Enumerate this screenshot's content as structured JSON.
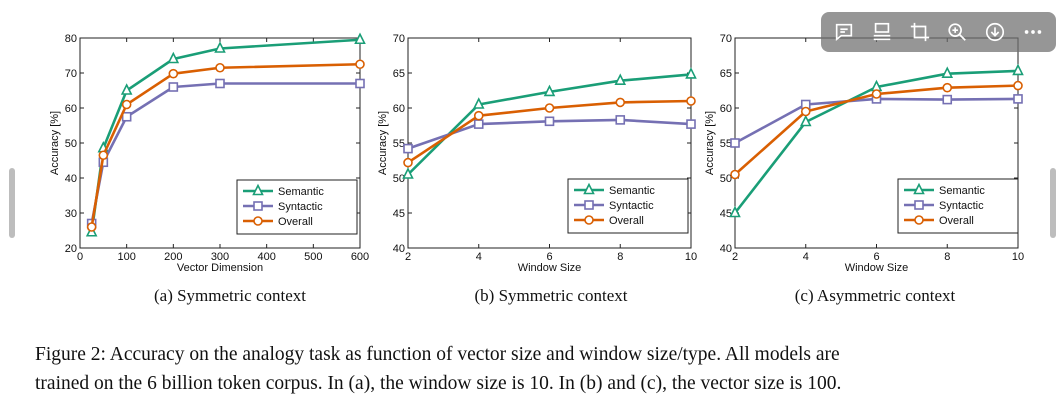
{
  "chart_data": [
    {
      "type": "line",
      "xlabel": "Vector Dimension",
      "ylabel": "Accuracy [%]",
      "xlim": [
        0,
        600
      ],
      "ylim": [
        20,
        80
      ],
      "xticks": [
        0,
        100,
        200,
        300,
        400,
        500,
        600
      ],
      "yticks": [
        20,
        30,
        40,
        50,
        60,
        70,
        80
      ],
      "legend_position": "lower-right",
      "series": [
        {
          "name": "Semantic",
          "color": "#1a9e77",
          "marker": "triangle",
          "x": [
            25,
            50,
            100,
            200,
            300,
            600
          ],
          "y": [
            24.5,
            48.5,
            65,
            74,
            77,
            79.5
          ]
        },
        {
          "name": "Syntactic",
          "color": "#7570b3",
          "marker": "square",
          "x": [
            25,
            50,
            100,
            200,
            300,
            600
          ],
          "y": [
            27,
            44.5,
            57.5,
            66,
            67,
            67
          ]
        },
        {
          "name": "Overall",
          "color": "#d95f02",
          "marker": "circle",
          "x": [
            25,
            50,
            100,
            200,
            300,
            600
          ],
          "y": [
            26,
            46.5,
            61,
            69.8,
            71.5,
            72.5
          ]
        }
      ]
    },
    {
      "type": "line",
      "xlabel": "Window Size",
      "ylabel": "Accuracy [%]",
      "xlim": [
        2,
        10
      ],
      "ylim": [
        40,
        70
      ],
      "xticks": [
        2,
        4,
        6,
        8,
        10
      ],
      "yticks": [
        40,
        45,
        50,
        55,
        60,
        65,
        70
      ],
      "legend_position": "lower-right",
      "series": [
        {
          "name": "Semantic",
          "color": "#1a9e77",
          "marker": "triangle",
          "x": [
            2,
            4,
            6,
            8,
            10
          ],
          "y": [
            50.5,
            60.5,
            62.3,
            63.9,
            64.8
          ]
        },
        {
          "name": "Syntactic",
          "color": "#7570b3",
          "marker": "square",
          "x": [
            2,
            4,
            6,
            8,
            10
          ],
          "y": [
            54.2,
            57.7,
            58.1,
            58.3,
            57.7
          ]
        },
        {
          "name": "Overall",
          "color": "#d95f02",
          "marker": "circle",
          "x": [
            2,
            4,
            6,
            8,
            10
          ],
          "y": [
            52.2,
            58.9,
            60.0,
            60.8,
            61.0
          ]
        }
      ]
    },
    {
      "type": "line",
      "xlabel": "Window Size",
      "ylabel": "Accuracy [%]",
      "xlim": [
        2,
        10
      ],
      "ylim": [
        40,
        70
      ],
      "xticks": [
        2,
        4,
        6,
        8,
        10
      ],
      "yticks": [
        40,
        45,
        50,
        55,
        60,
        65,
        70
      ],
      "legend_position": "lower-right",
      "series": [
        {
          "name": "Semantic",
          "color": "#1a9e77",
          "marker": "triangle",
          "x": [
            2,
            4,
            6,
            8,
            10
          ],
          "y": [
            45,
            58,
            63,
            64.9,
            65.3
          ]
        },
        {
          "name": "Syntactic",
          "color": "#7570b3",
          "marker": "square",
          "x": [
            2,
            4,
            6,
            8,
            10
          ],
          "y": [
            55,
            60.5,
            61.3,
            61.2,
            61.3
          ]
        },
        {
          "name": "Overall",
          "color": "#d95f02",
          "marker": "circle",
          "x": [
            2,
            4,
            6,
            8,
            10
          ],
          "y": [
            50.5,
            59.5,
            62,
            62.9,
            63.2
          ]
        }
      ]
    }
  ],
  "subcaptions": [
    "(a) Symmetric context",
    "(b) Symmetric context",
    "(c) Asymmetric context"
  ],
  "caption": {
    "line1": "Figure 2: Accuracy on the analogy task as function of vector size and window size/type. All models are",
    "line2": "trained on the 6 billion token corpus. In (a), the window size is 10. In (b) and (c), the vector size is 100."
  },
  "toolbar": {
    "buttons": [
      "comment-icon",
      "layout-icon",
      "crop-icon",
      "zoom-in-icon",
      "download-icon",
      "more-icon"
    ]
  }
}
